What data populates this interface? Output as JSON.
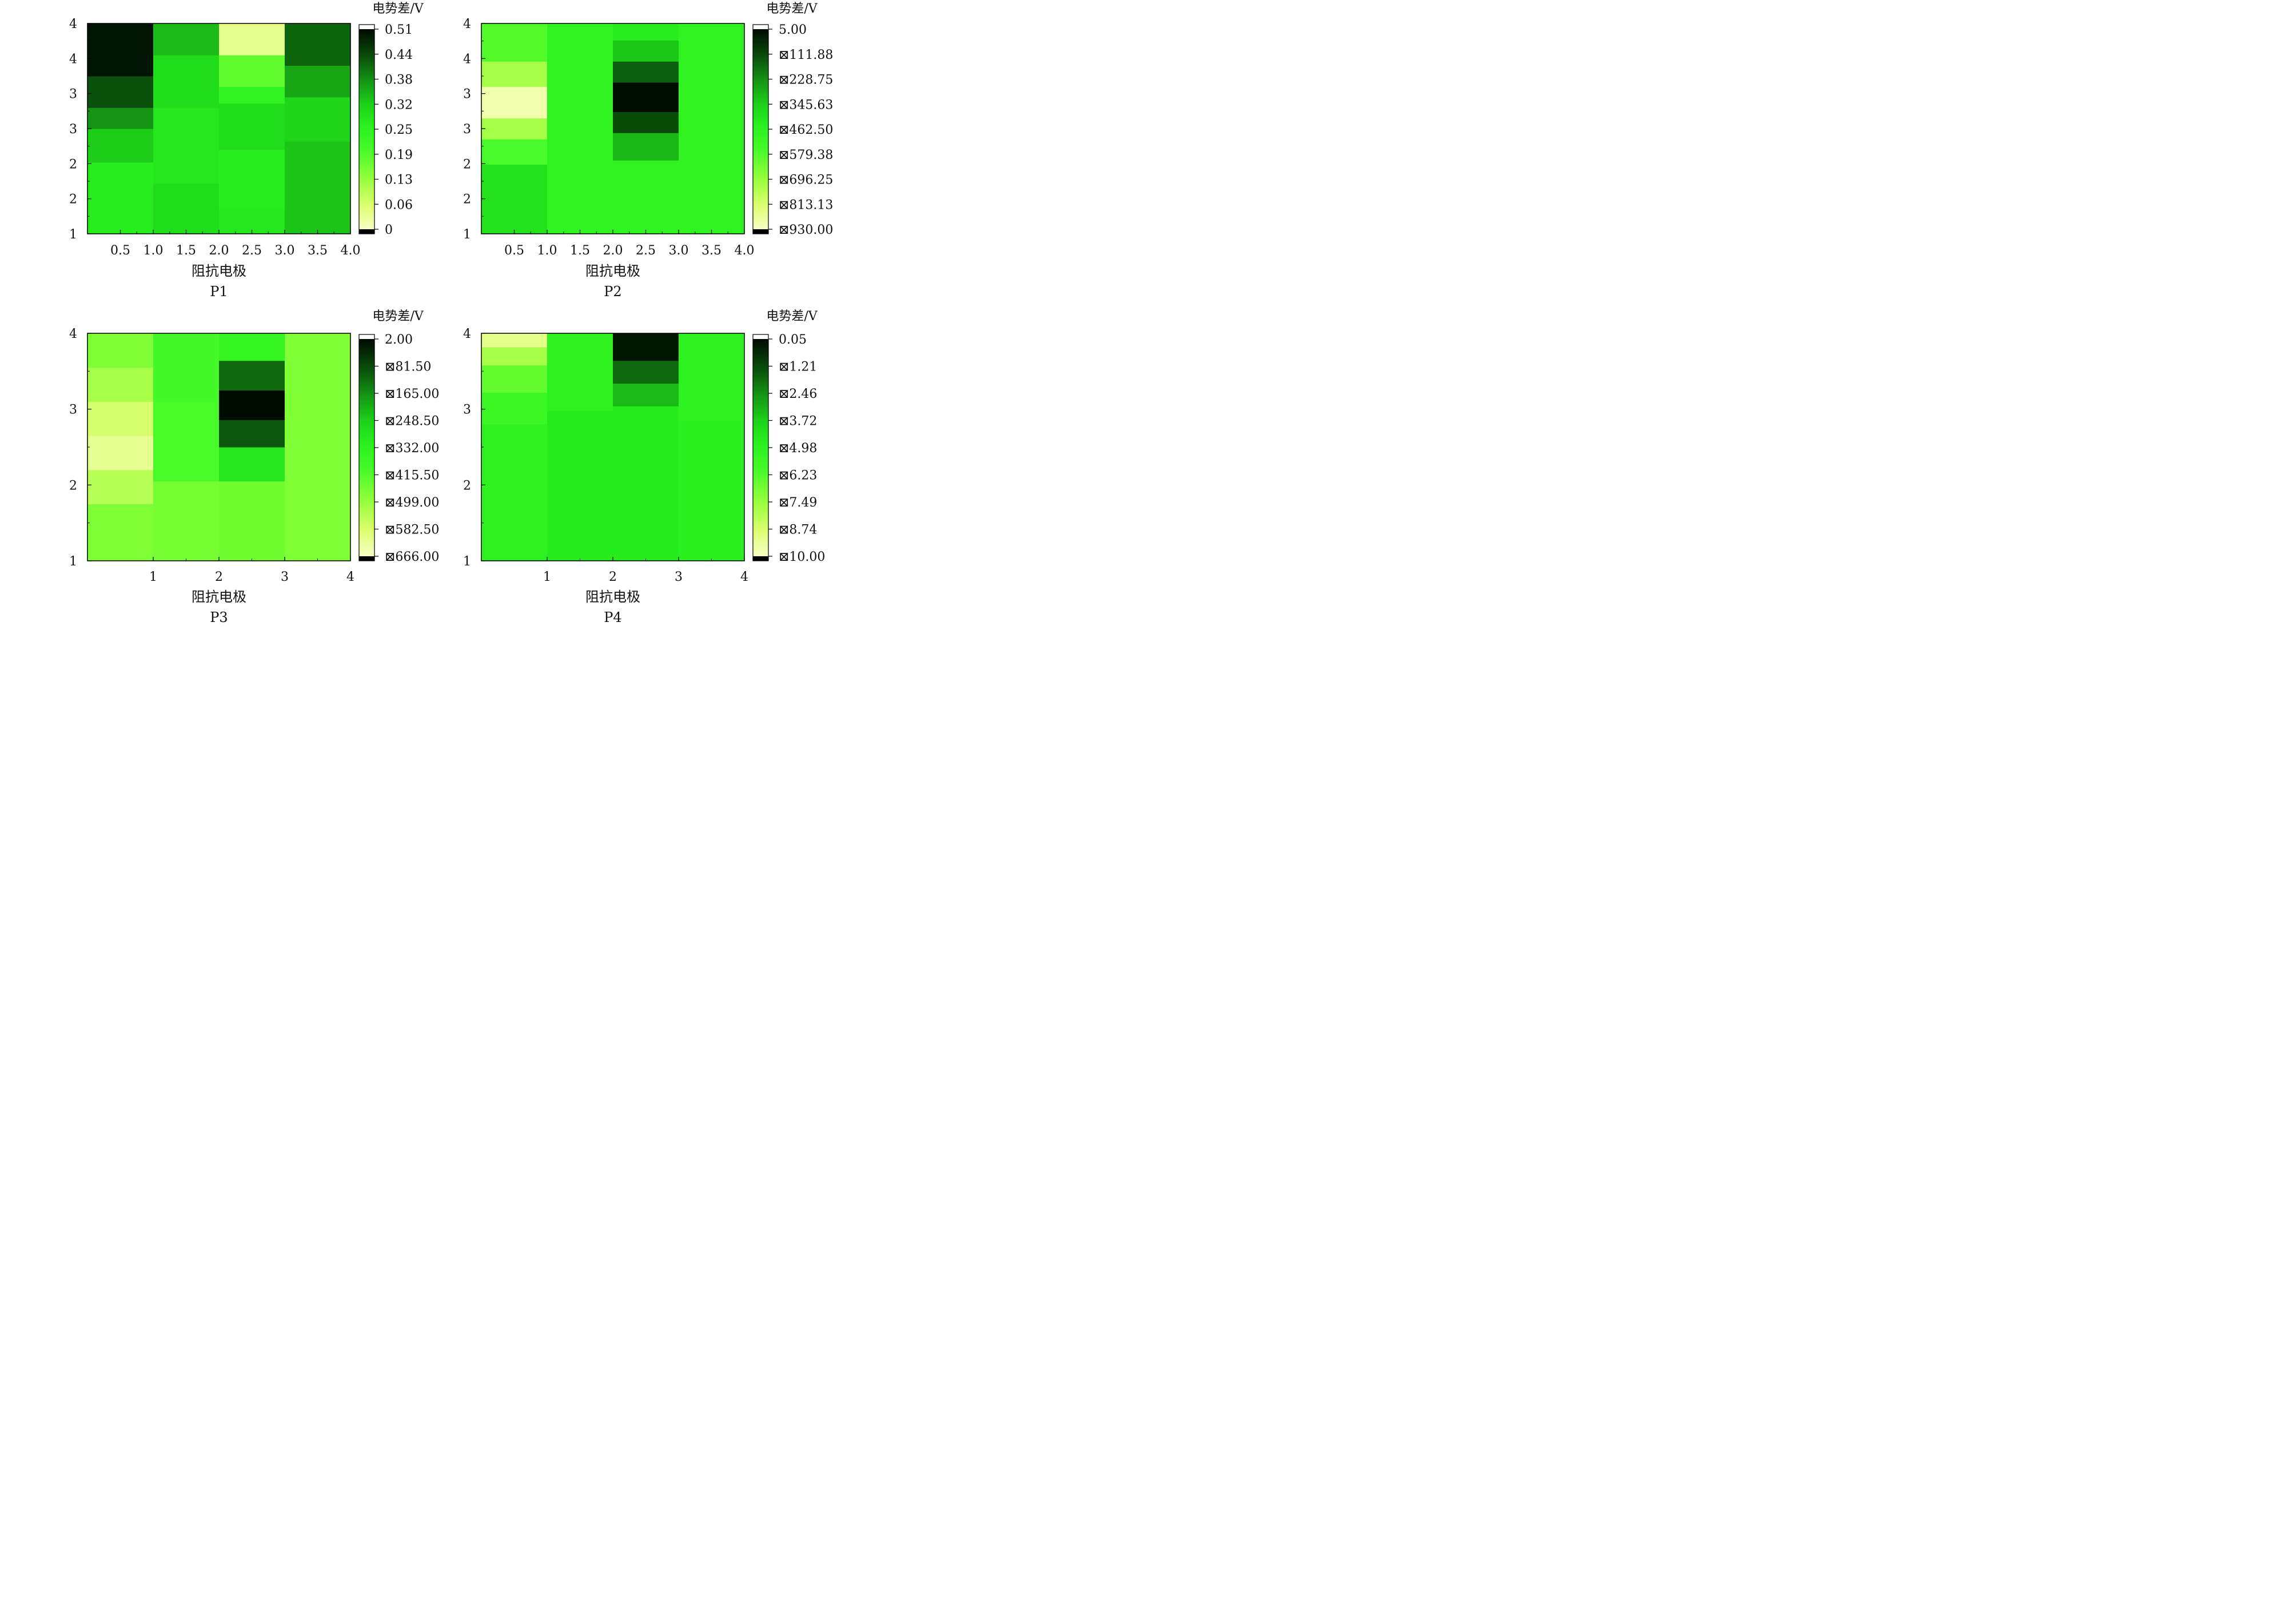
{
  "chart_data": [
    {
      "type": "heatmap",
      "title": "P1",
      "xlabel": "阻抗电极",
      "colorbar_title": "电势差/V",
      "xticks": [
        "0.5",
        "1.0",
        "1.5",
        "2.0",
        "2.5",
        "3.0",
        "3.5",
        "4.0"
      ],
      "yticks": [
        "1",
        "2",
        "2",
        "3",
        "3",
        "4",
        "4"
      ],
      "colorbar_ticks": [
        "0.51",
        "0.44",
        "0.38",
        "0.32",
        "0.25",
        "0.19",
        "0.13",
        "0.06",
        "0"
      ],
      "value_range": [
        0,
        0.51
      ],
      "columns": [
        {
          "x_range": [
            0.0,
            1.0
          ],
          "bands": [
            {
              "y_range": [
                0.0,
                0.34
              ],
              "value": 0.27
            },
            {
              "y_range": [
                0.34,
                0.5
              ],
              "value": 0.32
            },
            {
              "y_range": [
                0.5,
                0.6
              ],
              "value": 0.38
            },
            {
              "y_range": [
                0.6,
                0.75
              ],
              "value": 0.44
            },
            {
              "y_range": [
                0.75,
                1.0
              ],
              "value": 0.5
            }
          ]
        },
        {
          "x_range": [
            1.0,
            2.0
          ],
          "bands": [
            {
              "y_range": [
                0.0,
                0.24
              ],
              "value": 0.3
            },
            {
              "y_range": [
                0.24,
                0.6
              ],
              "value": 0.28
            },
            {
              "y_range": [
                0.6,
                0.85
              ],
              "value": 0.3
            },
            {
              "y_range": [
                0.85,
                1.0
              ],
              "value": 0.34
            }
          ]
        },
        {
          "x_range": [
            2.0,
            3.0
          ],
          "bands": [
            {
              "y_range": [
                0.0,
                0.12
              ],
              "value": 0.28
            },
            {
              "y_range": [
                0.12,
                0.4
              ],
              "value": 0.27
            },
            {
              "y_range": [
                0.4,
                0.62
              ],
              "value": 0.3
            },
            {
              "y_range": [
                0.62,
                0.7
              ],
              "value": 0.25
            },
            {
              "y_range": [
                0.7,
                0.85
              ],
              "value": 0.18
            },
            {
              "y_range": [
                0.85,
                1.0
              ],
              "value": 0.04
            }
          ]
        },
        {
          "x_range": [
            3.0,
            4.0
          ],
          "bands": [
            {
              "y_range": [
                0.0,
                0.44
              ],
              "value": 0.33
            },
            {
              "y_range": [
                0.44,
                0.65
              ],
              "value": 0.31
            },
            {
              "y_range": [
                0.65,
                0.8
              ],
              "value": 0.36
            },
            {
              "y_range": [
                0.8,
                1.0
              ],
              "value": 0.42
            }
          ]
        }
      ]
    },
    {
      "type": "heatmap",
      "title": "P2",
      "xlabel": "阻抗电极",
      "colorbar_title": "电势差/V",
      "xticks": [
        "0.5",
        "1.0",
        "1.5",
        "2.0",
        "2.5",
        "3.0",
        "3.5",
        "4.0"
      ],
      "yticks": [
        "1",
        "2",
        "2",
        "3",
        "3",
        "4",
        "4"
      ],
      "colorbar_ticks": [
        "5.00",
        "⊠111.88",
        "⊠228.75",
        "⊠345.63",
        "⊠462.50",
        "⊠579.38",
        "⊠696.25",
        "⊠813.13",
        "⊠930.00"
      ],
      "value_range": [
        -930,
        5
      ],
      "columns": [
        {
          "x_range": [
            0.0,
            1.0
          ],
          "bands": [
            {
              "y_range": [
                0.0,
                0.33
              ],
              "value": -400
            },
            {
              "y_range": [
                0.33,
                0.45
              ],
              "value": -560
            },
            {
              "y_range": [
                0.45,
                0.55
              ],
              "value": -720
            },
            {
              "y_range": [
                0.55,
                0.7
              ],
              "value": -900
            },
            {
              "y_range": [
                0.7,
                0.82
              ],
              "value": -720
            },
            {
              "y_range": [
                0.82,
                1.0
              ],
              "value": -580
            }
          ]
        },
        {
          "x_range": [
            1.0,
            2.0
          ],
          "bands": [
            {
              "y_range": [
                0.0,
                1.0
              ],
              "value": -470
            }
          ]
        },
        {
          "x_range": [
            2.0,
            3.0
          ],
          "bands": [
            {
              "y_range": [
                0.0,
                0.35
              ],
              "value": -470
            },
            {
              "y_range": [
                0.35,
                0.48
              ],
              "value": -300
            },
            {
              "y_range": [
                0.48,
                0.58
              ],
              "value": -120
            },
            {
              "y_range": [
                0.58,
                0.72
              ],
              "value": 0
            },
            {
              "y_range": [
                0.72,
                0.82
              ],
              "value": -150
            },
            {
              "y_range": [
                0.82,
                0.92
              ],
              "value": -330
            },
            {
              "y_range": [
                0.92,
                1.0
              ],
              "value": -430
            }
          ]
        },
        {
          "x_range": [
            3.0,
            4.0
          ],
          "bands": [
            {
              "y_range": [
                0.0,
                1.0
              ],
              "value": -470
            }
          ]
        }
      ]
    },
    {
      "type": "heatmap",
      "title": "P3",
      "xlabel": "阻抗电极",
      "colorbar_title": "电势差/V",
      "xticks": [
        "1",
        "2",
        "3",
        "4"
      ],
      "yticks": [
        "1",
        "2",
        "3",
        "4"
      ],
      "colorbar_ticks": [
        "2.00",
        "⊠81.50",
        "⊠165.00",
        "⊠248.50",
        "⊠332.00",
        "⊠415.50",
        "⊠499.00",
        "⊠582.50",
        "⊠666.00"
      ],
      "value_range": [
        -666,
        2
      ],
      "columns": [
        {
          "x_range": [
            0.0,
            1.0
          ],
          "bands": [
            {
              "y_range": [
                0.0,
                0.25
              ],
              "value": -470
            },
            {
              "y_range": [
                0.25,
                0.4
              ],
              "value": -540
            },
            {
              "y_range": [
                0.4,
                0.55
              ],
              "value": -620
            },
            {
              "y_range": [
                0.55,
                0.7
              ],
              "value": -580
            },
            {
              "y_range": [
                0.7,
                0.85
              ],
              "value": -520
            },
            {
              "y_range": [
                0.85,
                1.0
              ],
              "value": -470
            }
          ]
        },
        {
          "x_range": [
            1.0,
            2.0
          ],
          "bands": [
            {
              "y_range": [
                0.0,
                0.35
              ],
              "value": -460
            },
            {
              "y_range": [
                0.35,
                0.7
              ],
              "value": -400
            },
            {
              "y_range": [
                0.7,
                1.0
              ],
              "value": -390
            }
          ]
        },
        {
          "x_range": [
            2.0,
            3.0
          ],
          "bands": [
            {
              "y_range": [
                0.0,
                0.35
              ],
              "value": -450
            },
            {
              "y_range": [
                0.35,
                0.5
              ],
              "value": -300
            },
            {
              "y_range": [
                0.5,
                0.62
              ],
              "value": -100
            },
            {
              "y_range": [
                0.62,
                0.75
              ],
              "value": 0
            },
            {
              "y_range": [
                0.75,
                0.88
              ],
              "value": -120
            },
            {
              "y_range": [
                0.88,
                1.0
              ],
              "value": -350
            }
          ]
        },
        {
          "x_range": [
            3.0,
            4.0
          ],
          "bands": [
            {
              "y_range": [
                0.0,
                1.0
              ],
              "value": -470
            }
          ]
        }
      ]
    },
    {
      "type": "heatmap",
      "title": "P4",
      "xlabel": "阻抗电极",
      "colorbar_title": "电势差/V",
      "xticks": [
        "1",
        "2",
        "3",
        "4"
      ],
      "yticks": [
        "1",
        "2",
        "3",
        "4"
      ],
      "colorbar_ticks": [
        "0.05",
        "⊠1.21",
        "⊠2.46",
        "⊠3.72",
        "⊠4.98",
        "⊠6.23",
        "⊠7.49",
        "⊠8.74",
        "⊠10.00"
      ],
      "value_range": [
        -10,
        0.05
      ],
      "columns": [
        {
          "x_range": [
            0.0,
            1.0
          ],
          "bands": [
            {
              "y_range": [
                0.0,
                0.6
              ],
              "value": -5.0
            },
            {
              "y_range": [
                0.6,
                0.74
              ],
              "value": -5.6
            },
            {
              "y_range": [
                0.74,
                0.86
              ],
              "value": -6.5
            },
            {
              "y_range": [
                0.86,
                0.94
              ],
              "value": -7.8
            },
            {
              "y_range": [
                0.94,
                1.0
              ],
              "value": -9.2
            }
          ]
        },
        {
          "x_range": [
            1.0,
            2.0
          ],
          "bands": [
            {
              "y_range": [
                0.0,
                0.66
              ],
              "value": -4.6
            },
            {
              "y_range": [
                0.66,
                1.0
              ],
              "value": -5.0
            }
          ]
        },
        {
          "x_range": [
            2.0,
            3.0
          ],
          "bands": [
            {
              "y_range": [
                0.0,
                0.68
              ],
              "value": -4.6
            },
            {
              "y_range": [
                0.68,
                0.78
              ],
              "value": -3.3
            },
            {
              "y_range": [
                0.78,
                0.88
              ],
              "value": -1.8
            },
            {
              "y_range": [
                0.88,
                1.0
              ],
              "value": -0.2
            }
          ]
        },
        {
          "x_range": [
            3.0,
            4.0
          ],
          "bands": [
            {
              "y_range": [
                0.0,
                0.62
              ],
              "value": -4.8
            },
            {
              "y_range": [
                0.62,
                1.0
              ],
              "value": -5.0
            }
          ]
        }
      ]
    }
  ]
}
